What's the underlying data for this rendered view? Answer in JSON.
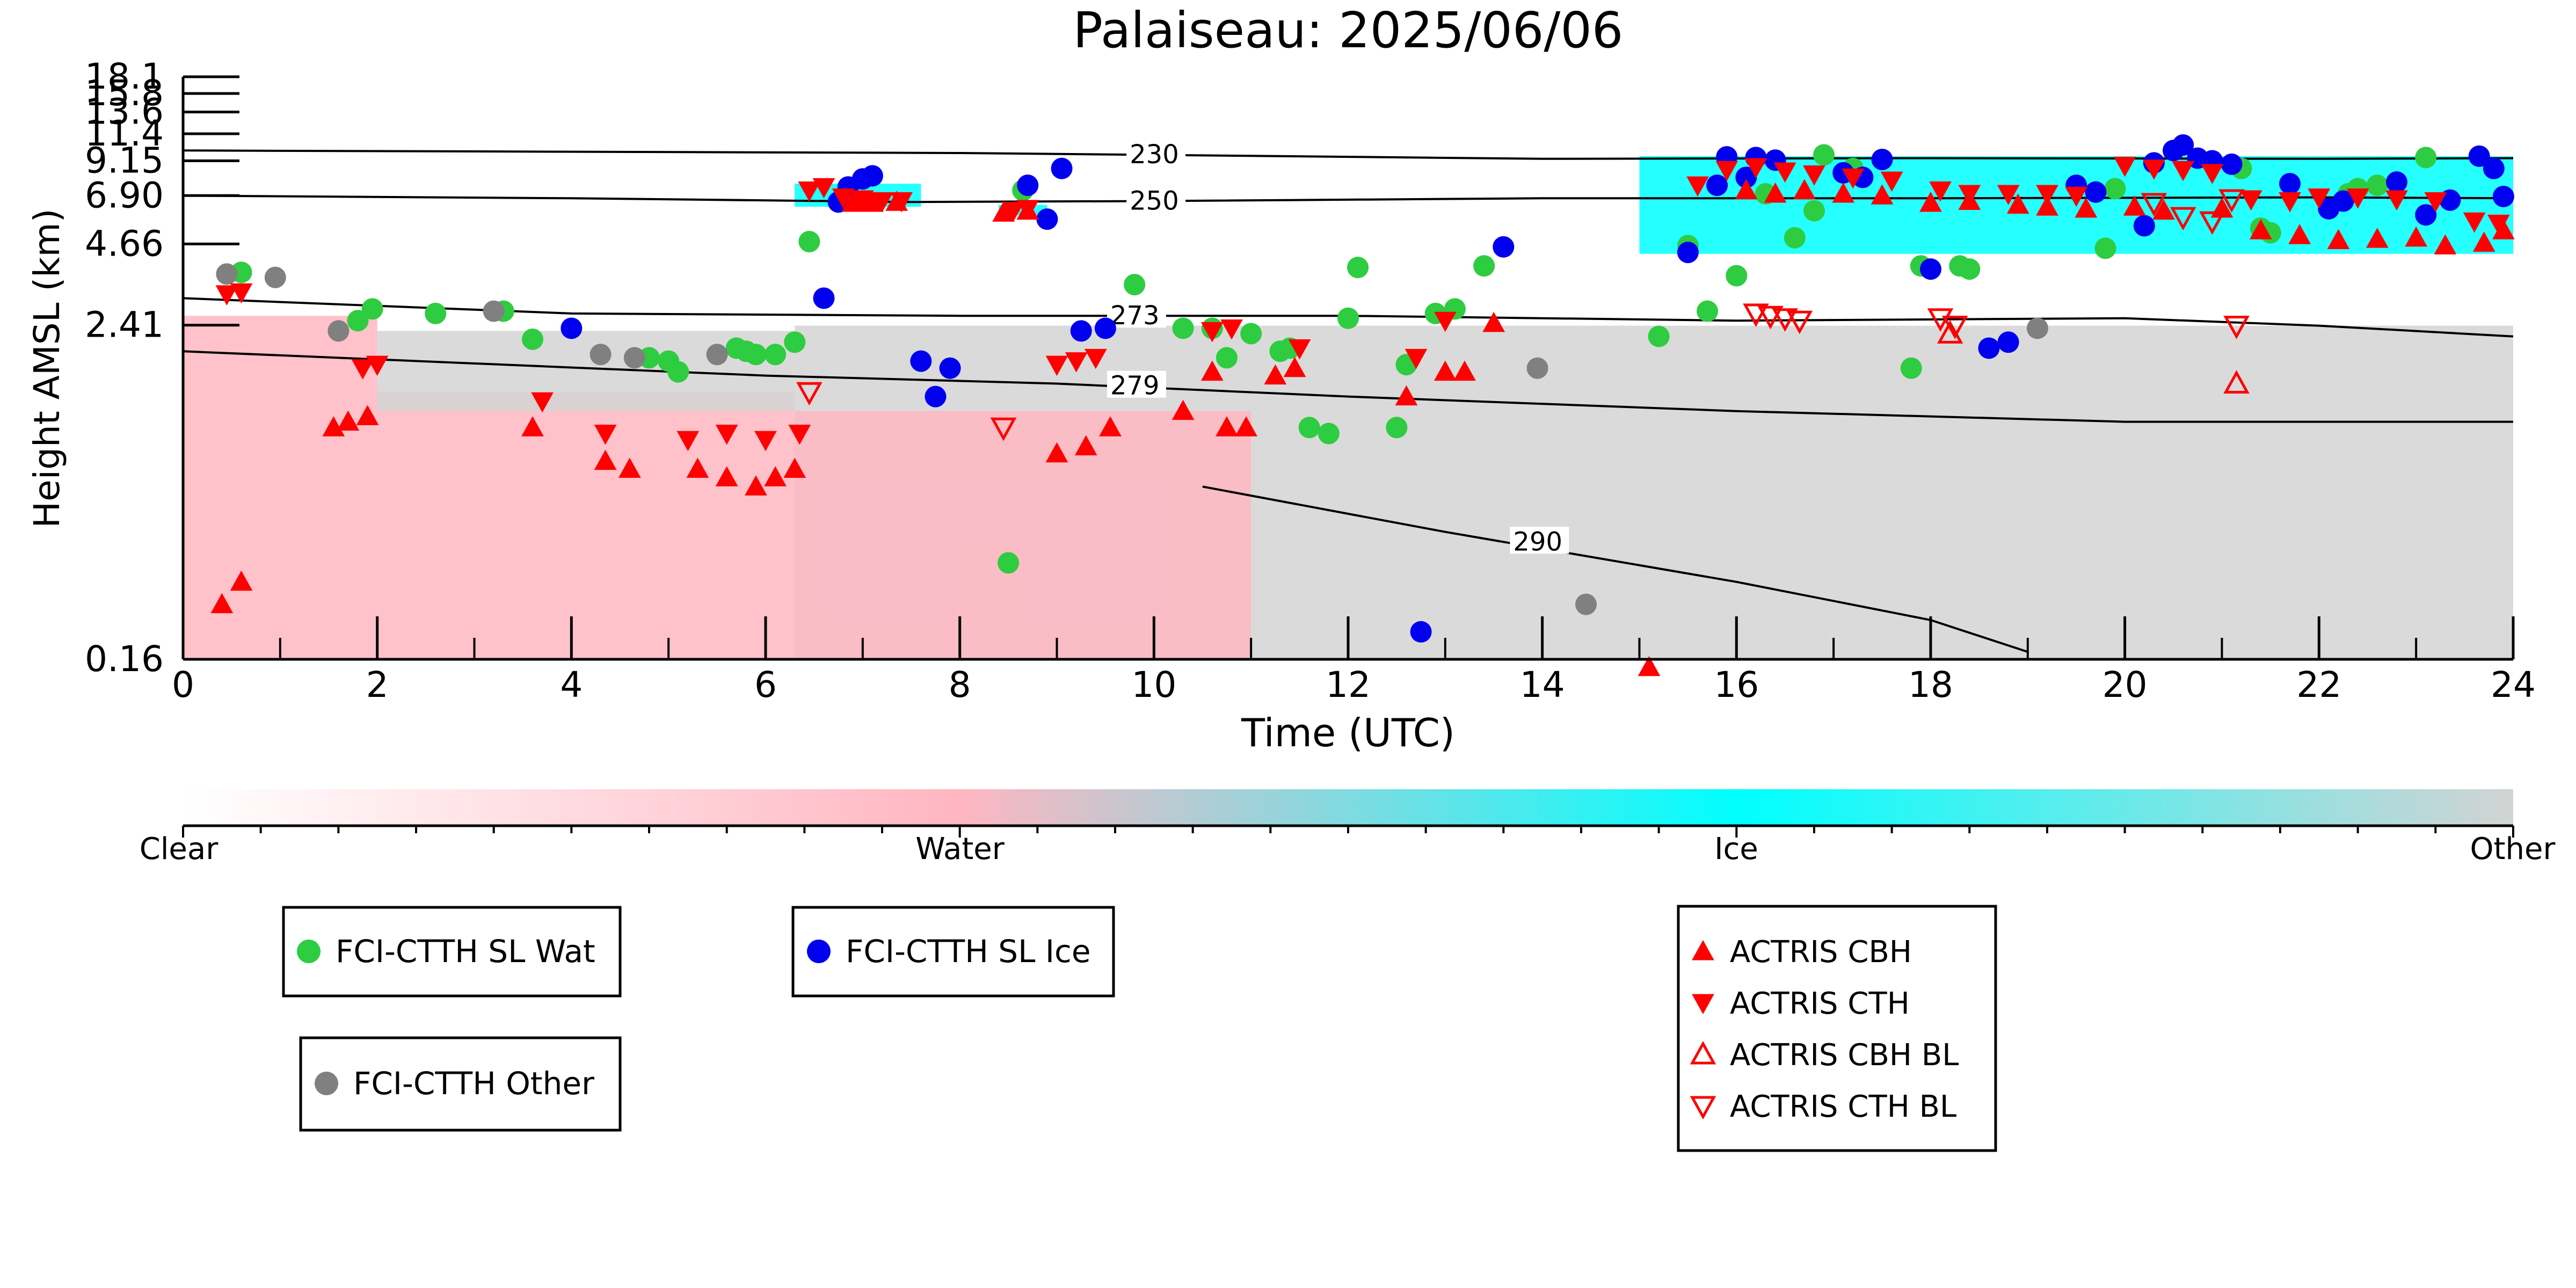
{
  "chart_data": {
    "type": "scatter",
    "title": "Palaiseau: 2025/06/06",
    "xlabel": "Time (UTC)",
    "ylabel": "Height AMSL (km)",
    "xlim": [
      0,
      24
    ],
    "ylim": [
      0.16,
      18.1
    ],
    "y_scale": "log",
    "x_ticks": [
      "0",
      "2",
      "4",
      "6",
      "8",
      "10",
      "12",
      "14",
      "16",
      "18",
      "20",
      "22",
      "24"
    ],
    "y_ticks": [
      "0.16",
      "2.41",
      "4.66",
      "6.90",
      "9.15",
      "11.4",
      "13.6",
      "15.8",
      "18.1"
    ],
    "grid": false,
    "colorbar": {
      "labels": [
        "Clear",
        "Water",
        "Ice",
        "Other"
      ],
      "colors": [
        "#ffffff",
        "#ffb6c1",
        "#00ffff",
        "#d3d3d3"
      ]
    },
    "contours": [
      {
        "label": "230",
        "label_x": 9.75,
        "points": [
          [
            0,
            9.95
          ],
          [
            4,
            9.85
          ],
          [
            8,
            9.75
          ],
          [
            12,
            9.45
          ],
          [
            14,
            9.3
          ],
          [
            18,
            9.35
          ],
          [
            22,
            9.3
          ],
          [
            24,
            9.35
          ]
        ]
      },
      {
        "label": "250",
        "label_x": 9.75,
        "points": [
          [
            0,
            6.9
          ],
          [
            4,
            6.75
          ],
          [
            7.5,
            6.55
          ],
          [
            10,
            6.6
          ],
          [
            14,
            6.75
          ],
          [
            18,
            6.75
          ],
          [
            22,
            6.8
          ],
          [
            24,
            6.75
          ]
        ]
      },
      {
        "label": "273",
        "label_x": 9.55,
        "points": [
          [
            0,
            3.0
          ],
          [
            4,
            2.65
          ],
          [
            8,
            2.6
          ],
          [
            12,
            2.6
          ],
          [
            16,
            2.5
          ],
          [
            20,
            2.55
          ],
          [
            22,
            2.4
          ],
          [
            24,
            2.2
          ]
        ]
      },
      {
        "label": "279",
        "label_x": 9.55,
        "points": [
          [
            0,
            1.95
          ],
          [
            6,
            1.6
          ],
          [
            9,
            1.5
          ],
          [
            12,
            1.35
          ],
          [
            16,
            1.2
          ],
          [
            20,
            1.1
          ],
          [
            24,
            1.1
          ]
        ]
      },
      {
        "label": "290",
        "label_x": 13.7,
        "points": [
          [
            10.5,
            0.65
          ],
          [
            13,
            0.45
          ],
          [
            16,
            0.3
          ],
          [
            18,
            0.22
          ],
          [
            19,
            0.17
          ]
        ]
      }
    ],
    "background": [
      {
        "class": "Water",
        "color": "#ffb6c1",
        "x0": 0.0,
        "x1": 2.0,
        "y0": 0.16,
        "y1": 2.6
      },
      {
        "class": "Water",
        "color": "#ffb6c1",
        "x0": 2.0,
        "x1": 6.3,
        "y0": 0.16,
        "y1": 1.4
      },
      {
        "class": "Other",
        "color": "#d3d3d3",
        "x0": 2.0,
        "x1": 6.3,
        "y0": 1.2,
        "y1": 2.3
      },
      {
        "class": "Other",
        "color": "#d3d3d3",
        "x0": 6.3,
        "x1": 24.0,
        "y0": 0.16,
        "y1": 2.4
      },
      {
        "class": "Water",
        "color": "#ffb6c1",
        "x0": 6.3,
        "x1": 11.0,
        "y0": 0.16,
        "y1": 1.2
      },
      {
        "class": "Ice",
        "color": "#00ffff",
        "x0": 6.3,
        "x1": 7.6,
        "y0": 6.3,
        "y1": 7.6
      },
      {
        "class": "Ice",
        "color": "#00ffff",
        "x0": 8.4,
        "x1": 8.9,
        "y0": 5.9,
        "y1": 6.4
      },
      {
        "class": "Ice",
        "color": "#00ffff",
        "x0": 15.0,
        "x1": 24.0,
        "y0": 4.3,
        "y1": 9.5
      }
    ],
    "series": [
      {
        "name": "FCI-CTTH SL Wat",
        "marker": "circle",
        "color": "#2ecc40",
        "points": [
          [
            0.6,
            3.7
          ],
          [
            1.8,
            2.5
          ],
          [
            1.95,
            2.75
          ],
          [
            2.6,
            2.65
          ],
          [
            3.3,
            2.7
          ],
          [
            3.6,
            2.15
          ],
          [
            4.8,
            1.85
          ],
          [
            5.0,
            1.8
          ],
          [
            5.1,
            1.65
          ],
          [
            5.7,
            2.0
          ],
          [
            5.8,
            1.95
          ],
          [
            5.9,
            1.9
          ],
          [
            6.1,
            1.9
          ],
          [
            6.3,
            2.1
          ],
          [
            6.45,
            4.75
          ],
          [
            8.5,
            0.35
          ],
          [
            8.65,
            7.2
          ],
          [
            9.8,
            3.35
          ],
          [
            10.3,
            2.35
          ],
          [
            10.6,
            2.35
          ],
          [
            10.75,
            1.85
          ],
          [
            11.0,
            2.25
          ],
          [
            11.3,
            1.95
          ],
          [
            11.4,
            2.0
          ],
          [
            11.6,
            1.05
          ],
          [
            11.8,
            1.0
          ],
          [
            12.0,
            2.55
          ],
          [
            12.1,
            3.85
          ],
          [
            12.5,
            1.05
          ],
          [
            12.6,
            1.75
          ],
          [
            12.9,
            2.65
          ],
          [
            13.1,
            2.75
          ],
          [
            13.4,
            3.9
          ],
          [
            15.2,
            2.2
          ],
          [
            15.5,
            4.6
          ],
          [
            15.7,
            2.7
          ],
          [
            16.0,
            3.6
          ],
          [
            16.3,
            7.0
          ],
          [
            16.6,
            4.9
          ],
          [
            16.8,
            6.1
          ],
          [
            16.9,
            9.6
          ],
          [
            17.2,
            8.6
          ],
          [
            17.8,
            1.7
          ],
          [
            17.9,
            3.9
          ],
          [
            18.3,
            3.9
          ],
          [
            18.4,
            3.8
          ],
          [
            19.8,
            4.5
          ],
          [
            19.9,
            7.3
          ],
          [
            21.2,
            8.6
          ],
          [
            21.4,
            5.3
          ],
          [
            21.5,
            5.1
          ],
          [
            22.3,
            7.0
          ],
          [
            22.4,
            7.3
          ],
          [
            22.6,
            7.5
          ],
          [
            23.1,
            9.4
          ]
        ]
      },
      {
        "name": "FCI-CTTH SL Ice",
        "marker": "circle",
        "color": "#0000ee",
        "points": [
          [
            4.0,
            2.35
          ],
          [
            6.6,
            3.0
          ],
          [
            6.75,
            6.55
          ],
          [
            6.85,
            7.4
          ],
          [
            7.0,
            7.9
          ],
          [
            7.1,
            8.1
          ],
          [
            7.6,
            1.8
          ],
          [
            7.75,
            1.35
          ],
          [
            7.9,
            1.7
          ],
          [
            8.7,
            7.5
          ],
          [
            8.9,
            5.7
          ],
          [
            9.05,
            8.6
          ],
          [
            9.25,
            2.3
          ],
          [
            9.5,
            2.35
          ],
          [
            12.75,
            0.2
          ],
          [
            13.6,
            4.55
          ],
          [
            15.5,
            4.35
          ],
          [
            15.8,
            7.5
          ],
          [
            15.9,
            9.45
          ],
          [
            16.1,
            8.0
          ],
          [
            16.2,
            9.4
          ],
          [
            16.4,
            9.2
          ],
          [
            17.1,
            8.3
          ],
          [
            17.3,
            8.0
          ],
          [
            17.5,
            9.25
          ],
          [
            18.0,
            3.8
          ],
          [
            18.6,
            2.0
          ],
          [
            18.8,
            2.1
          ],
          [
            19.5,
            7.5
          ],
          [
            19.7,
            7.1
          ],
          [
            20.2,
            5.4
          ],
          [
            20.3,
            9.0
          ],
          [
            20.5,
            9.95
          ],
          [
            20.6,
            10.4
          ],
          [
            20.75,
            9.35
          ],
          [
            20.9,
            9.15
          ],
          [
            21.1,
            8.9
          ],
          [
            21.7,
            7.6
          ],
          [
            22.1,
            6.2
          ],
          [
            22.25,
            6.6
          ],
          [
            22.8,
            7.7
          ],
          [
            23.1,
            5.9
          ],
          [
            23.35,
            6.65
          ],
          [
            23.65,
            9.5
          ],
          [
            23.8,
            8.6
          ],
          [
            23.9,
            6.85
          ]
        ]
      },
      {
        "name": "FCI-CTTH Other",
        "marker": "circle",
        "color": "#808080",
        "points": [
          [
            0.45,
            3.65
          ],
          [
            0.95,
            3.55
          ],
          [
            1.6,
            2.3
          ],
          [
            3.2,
            2.7
          ],
          [
            4.3,
            1.9
          ],
          [
            4.65,
            1.85
          ],
          [
            5.5,
            1.9
          ],
          [
            13.95,
            1.7
          ],
          [
            14.45,
            0.25
          ],
          [
            19.1,
            2.35
          ]
        ]
      },
      {
        "name": "ACTRIS CBH",
        "marker": "triangle-up",
        "color": "#ff0000",
        "points": [
          [
            0.4,
            0.25
          ],
          [
            0.6,
            0.3
          ],
          [
            1.55,
            1.05
          ],
          [
            1.7,
            1.1
          ],
          [
            1.9,
            1.15
          ],
          [
            3.6,
            1.05
          ],
          [
            4.35,
            0.8
          ],
          [
            4.6,
            0.75
          ],
          [
            5.3,
            0.75
          ],
          [
            5.6,
            0.7
          ],
          [
            5.9,
            0.65
          ],
          [
            6.1,
            0.7
          ],
          [
            6.3,
            0.75
          ],
          [
            6.9,
            6.5
          ],
          [
            7.1,
            6.5
          ],
          [
            7.35,
            6.55
          ],
          [
            8.45,
            6.0
          ],
          [
            8.7,
            6.1
          ],
          [
            9.0,
            0.85
          ],
          [
            9.3,
            0.9
          ],
          [
            9.55,
            1.05
          ],
          [
            10.3,
            1.2
          ],
          [
            10.6,
            1.65
          ],
          [
            10.75,
            1.05
          ],
          [
            10.95,
            1.05
          ],
          [
            11.25,
            1.6
          ],
          [
            11.45,
            1.7
          ],
          [
            12.6,
            1.35
          ],
          [
            13.0,
            1.65
          ],
          [
            13.2,
            1.65
          ],
          [
            13.5,
            2.45
          ],
          [
            15.1,
            0.15
          ],
          [
            16.1,
            7.2
          ],
          [
            16.4,
            7.0
          ],
          [
            16.7,
            7.2
          ],
          [
            17.1,
            7.0
          ],
          [
            17.5,
            6.9
          ],
          [
            18.0,
            6.5
          ],
          [
            18.4,
            6.6
          ],
          [
            18.9,
            6.4
          ],
          [
            19.2,
            6.3
          ],
          [
            19.6,
            6.2
          ],
          [
            20.1,
            6.3
          ],
          [
            20.4,
            6.1
          ],
          [
            21.0,
            6.2
          ],
          [
            21.4,
            5.2
          ],
          [
            21.8,
            5.0
          ],
          [
            22.2,
            4.8
          ],
          [
            22.6,
            4.85
          ],
          [
            23.0,
            4.9
          ],
          [
            23.3,
            4.6
          ],
          [
            23.7,
            4.7
          ],
          [
            23.9,
            5.2
          ]
        ]
      },
      {
        "name": "ACTRIS CTH",
        "marker": "triangle-down",
        "color": "#ff0000",
        "points": [
          [
            0.45,
            3.1
          ],
          [
            0.6,
            3.15
          ],
          [
            1.85,
            1.7
          ],
          [
            2.0,
            1.75
          ],
          [
            3.7,
            1.3
          ],
          [
            4.35,
            1.0
          ],
          [
            5.2,
            0.95
          ],
          [
            5.6,
            1.0
          ],
          [
            6.0,
            0.95
          ],
          [
            6.35,
            1.0
          ],
          [
            6.45,
            7.2
          ],
          [
            6.6,
            7.4
          ],
          [
            6.8,
            6.8
          ],
          [
            7.0,
            6.7
          ],
          [
            7.2,
            6.6
          ],
          [
            7.4,
            6.6
          ],
          [
            8.55,
            6.1
          ],
          [
            8.7,
            6.2
          ],
          [
            9.0,
            1.75
          ],
          [
            9.2,
            1.8
          ],
          [
            9.4,
            1.85
          ],
          [
            10.6,
            2.3
          ],
          [
            10.8,
            2.35
          ],
          [
            11.5,
            2.0
          ],
          [
            12.7,
            1.85
          ],
          [
            13.0,
            2.5
          ],
          [
            15.6,
            7.5
          ],
          [
            15.9,
            8.5
          ],
          [
            16.2,
            8.7
          ],
          [
            16.5,
            8.4
          ],
          [
            16.8,
            8.2
          ],
          [
            17.2,
            8.0
          ],
          [
            17.6,
            7.8
          ],
          [
            18.1,
            7.2
          ],
          [
            18.4,
            7.0
          ],
          [
            18.8,
            7.0
          ],
          [
            19.2,
            7.0
          ],
          [
            19.5,
            6.9
          ],
          [
            20.0,
            8.8
          ],
          [
            20.3,
            8.6
          ],
          [
            20.6,
            8.5
          ],
          [
            20.9,
            8.3
          ],
          [
            21.3,
            6.7
          ],
          [
            21.7,
            6.6
          ],
          [
            22.0,
            6.8
          ],
          [
            22.4,
            6.8
          ],
          [
            22.8,
            6.7
          ],
          [
            23.2,
            6.6
          ],
          [
            23.6,
            5.6
          ],
          [
            23.85,
            5.5
          ]
        ]
      },
      {
        "name": "ACTRIS CBH BL",
        "marker": "triangle-up-open",
        "color": "#ff0000",
        "points": [
          [
            18.2,
            2.25
          ],
          [
            21.15,
            1.5
          ]
        ]
      },
      {
        "name": "ACTRIS CTH BL",
        "marker": "triangle-down-open",
        "color": "#ff0000",
        "points": [
          [
            6.45,
            1.4
          ],
          [
            8.45,
            1.05
          ],
          [
            16.2,
            2.65
          ],
          [
            16.35,
            2.6
          ],
          [
            16.5,
            2.55
          ],
          [
            16.65,
            2.5
          ],
          [
            18.1,
            2.55
          ],
          [
            18.25,
            2.4
          ],
          [
            21.15,
            2.4
          ],
          [
            20.3,
            6.5
          ],
          [
            20.6,
            5.8
          ],
          [
            20.9,
            5.6
          ],
          [
            21.1,
            6.7
          ]
        ]
      }
    ],
    "legends": [
      {
        "entries": [
          "FCI-CTTH SL Wat"
        ]
      },
      {
        "entries": [
          "FCI-CTTH SL Ice"
        ]
      },
      {
        "entries": [
          "FCI-CTTH Other"
        ]
      },
      {
        "entries": [
          "ACTRIS CBH",
          "ACTRIS CTH",
          "ACTRIS CBH BL",
          "ACTRIS CTH BL"
        ]
      }
    ]
  }
}
